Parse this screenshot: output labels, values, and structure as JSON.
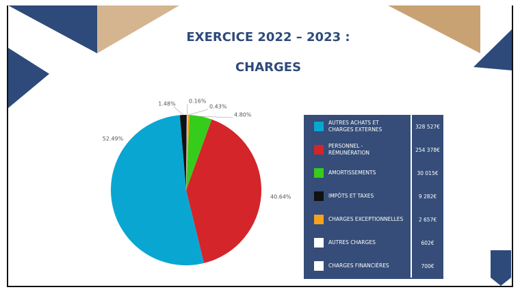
{
  "chart_data": {
    "type": "pie",
    "title": "EXERCICE 2022 – 2023 :",
    "subtitle": "CHARGES",
    "values": [
      0.43,
      4.8,
      40.64,
      52.49,
      1.48,
      0.16
    ],
    "value_labels": [
      "0.43%",
      "4.80%",
      "40.64%",
      "52.49%",
      "1.48%",
      "0.16%"
    ],
    "colors": [
      "#f5a21f",
      "#36cc1c",
      "#d3252a",
      "#0aa6d2",
      "#111111",
      "#ffffff"
    ]
  },
  "legend_table": {
    "rows": [
      {
        "label": "AUTRES ACHATS ET CHARGES EXTERNES",
        "amount": "328 527€",
        "color": "#0aa6d2"
      },
      {
        "label": "PERSONNEL - RÉMUNÉRATION",
        "amount": "254 378€",
        "color": "#d3252a"
      },
      {
        "label": "AMORTISSEMENTS",
        "amount": "30 015€",
        "color": "#36cc1c"
      },
      {
        "label": "IMPÔTS ET TAXES",
        "amount": "9 282€",
        "color": "#111111"
      },
      {
        "label": "CHARGES EXCEPTIONNELLES",
        "amount": "2 657€",
        "color": "#f5a21f"
      },
      {
        "label": "AUTRES CHARGES",
        "amount": "602€",
        "color": "#ffffff"
      },
      {
        "label": "CHARGES FINANCIÈRES",
        "amount": "700€",
        "color": "#ffffff"
      }
    ]
  }
}
